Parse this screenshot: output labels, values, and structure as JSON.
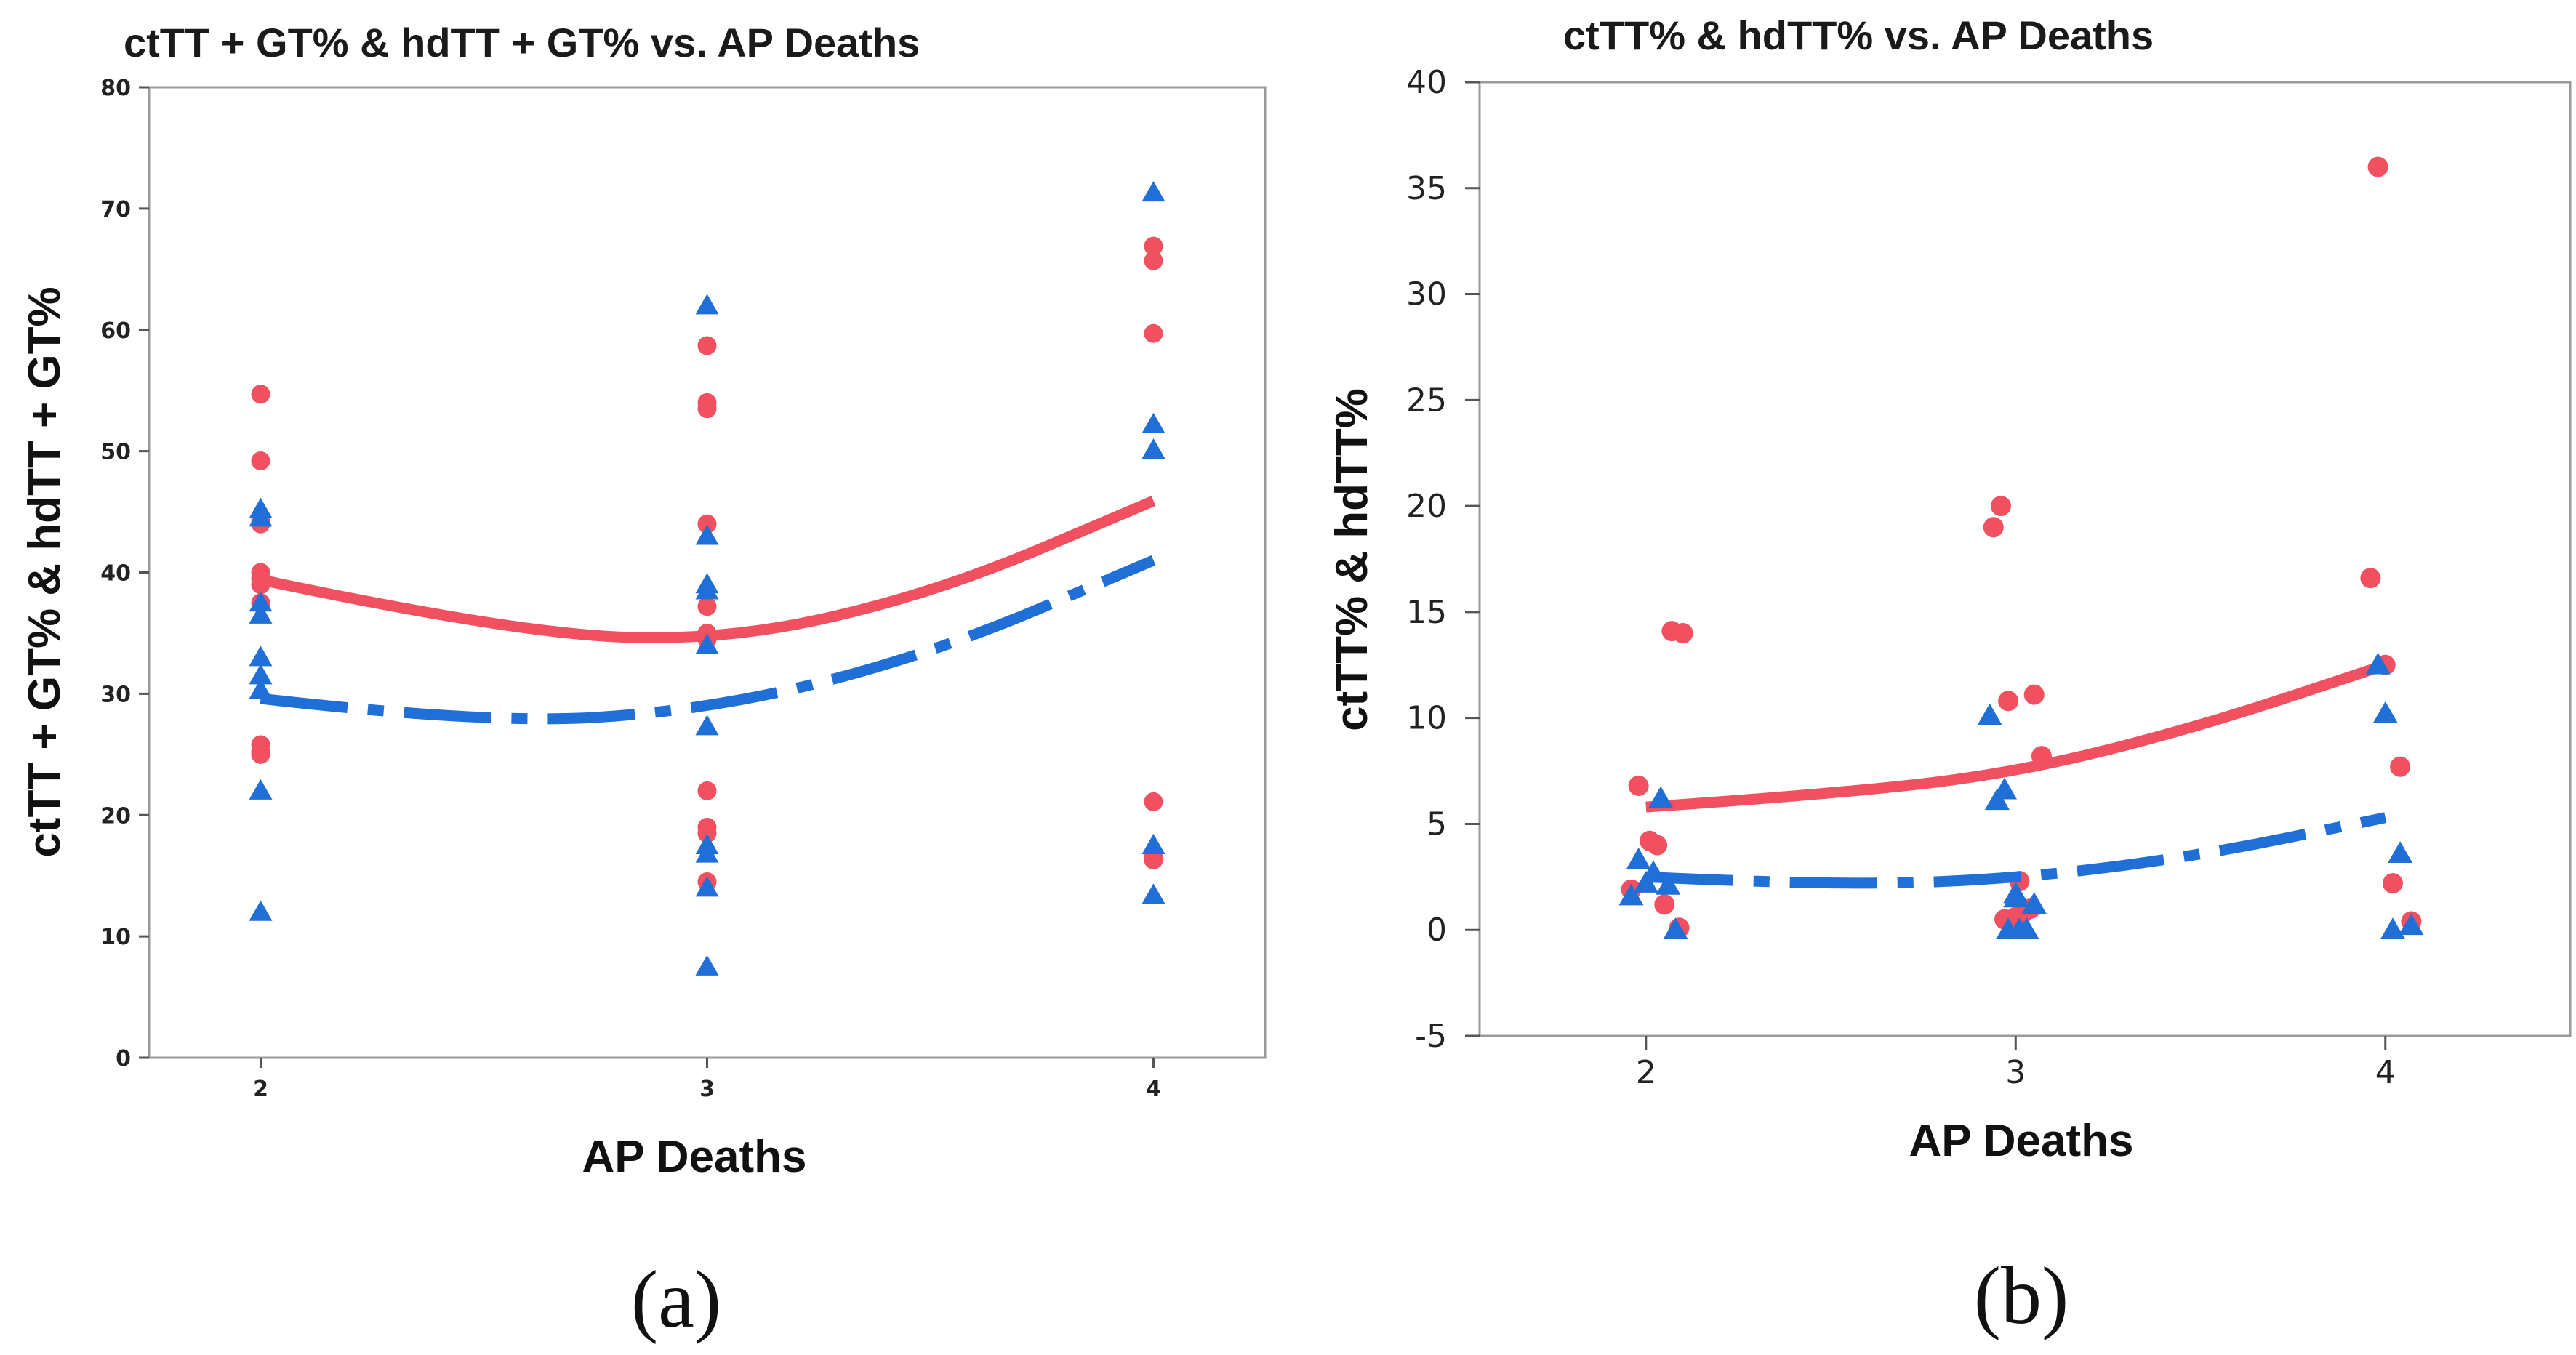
{
  "chart_data": [
    {
      "type": "scatter",
      "panel_label": "(a)",
      "title": "ctTT + GT% & hdTT + GT% vs. AP Deaths",
      "xlabel": "AP Deaths",
      "ylabel": "ctTT + GT% & hdTT + GT%",
      "xlim": [
        1.75,
        4.25
      ],
      "ylim": [
        0,
        80
      ],
      "xticks": [
        2,
        3,
        4
      ],
      "yticks": [
        0,
        10,
        20,
        30,
        40,
        50,
        60,
        70,
        80
      ],
      "series": [
        {
          "name": "ctTT + GT%",
          "marker": "circle",
          "color": "#f0505f",
          "points": [
            [
              2,
              54.7
            ],
            [
              2,
              49.2
            ],
            [
              2,
              44.3
            ],
            [
              2,
              44.0
            ],
            [
              2,
              40.0
            ],
            [
              2,
              39.5
            ],
            [
              2,
              39.0
            ],
            [
              2,
              37.5
            ],
            [
              2,
              25.8
            ],
            [
              2,
              25.2
            ],
            [
              2,
              25.0
            ],
            [
              3,
              58.7
            ],
            [
              3,
              54.0
            ],
            [
              3,
              53.5
            ],
            [
              3,
              44.0
            ],
            [
              3,
              37.2
            ],
            [
              3,
              35.0
            ],
            [
              3,
              34.5
            ],
            [
              3,
              22.0
            ],
            [
              3,
              19.0
            ],
            [
              3,
              18.5
            ],
            [
              3,
              14.5
            ],
            [
              4,
              66.9
            ],
            [
              4,
              65.7
            ],
            [
              4,
              59.7
            ],
            [
              4,
              21.1
            ],
            [
              4,
              16.5
            ],
            [
              4,
              16.3
            ]
          ],
          "fit": [
            [
              2,
              39.4
            ],
            [
              2.5,
              35.5
            ],
            [
              3,
              34.1
            ],
            [
              3.5,
              38.1
            ],
            [
              4,
              45.9
            ]
          ]
        },
        {
          "name": "hdTT + GT%",
          "marker": "triangle",
          "color": "#1f6fd6",
          "points": [
            [
              2,
              45.2
            ],
            [
              2,
              44.5
            ],
            [
              2,
              37.5
            ],
            [
              2,
              36.5
            ],
            [
              2,
              33.0
            ],
            [
              2,
              31.5
            ],
            [
              2,
              30.3
            ],
            [
              2,
              22.0
            ],
            [
              2,
              12.0
            ],
            [
              3,
              62.0
            ],
            [
              3,
              43.0
            ],
            [
              3,
              39.0
            ],
            [
              3,
              38.5
            ],
            [
              3,
              34.0
            ],
            [
              3,
              27.3
            ],
            [
              3,
              17.5
            ],
            [
              3,
              16.8
            ],
            [
              3,
              14.0
            ],
            [
              3,
              7.5
            ],
            [
              4,
              71.3
            ],
            [
              4,
              52.2
            ],
            [
              4,
              50.1
            ],
            [
              4,
              17.5
            ],
            [
              4,
              13.4
            ]
          ],
          "fit": [
            [
              2,
              29.6
            ],
            [
              2.5,
              27.5
            ],
            [
              3,
              28.6
            ],
            [
              3.5,
              33.2
            ],
            [
              4,
              41.0
            ]
          ]
        }
      ]
    },
    {
      "type": "scatter",
      "panel_label": "(b)",
      "title": "ctTT% & hdTT% vs. AP Deaths",
      "xlabel": "AP Deaths",
      "ylabel": "ctTT% & hdTT%",
      "xlim": [
        1.55,
        4.5
      ],
      "ylim": [
        -5,
        40
      ],
      "xticks": [
        2,
        3,
        4
      ],
      "yticks": [
        -5,
        0,
        5,
        10,
        15,
        20,
        25,
        30,
        35,
        40
      ],
      "series": [
        {
          "name": "ctTT%",
          "marker": "circle",
          "color": "#f0505f",
          "points": [
            [
              1.96,
              1.9
            ],
            [
              1.98,
              6.8
            ],
            [
              2.01,
              4.2
            ],
            [
              2.03,
              4.0
            ],
            [
              2.05,
              1.2
            ],
            [
              2.07,
              14.1
            ],
            [
              2.09,
              0.1
            ],
            [
              2.1,
              14.0
            ],
            [
              2.94,
              19.0
            ],
            [
              2.96,
              20.0
            ],
            [
              2.97,
              0.5
            ],
            [
              2.98,
              10.8
            ],
            [
              3.0,
              0.6
            ],
            [
              3.01,
              2.3
            ],
            [
              3.02,
              0.8
            ],
            [
              3.04,
              1.0
            ],
            [
              3.05,
              11.1
            ],
            [
              3.07,
              8.2
            ],
            [
              3.96,
              16.6
            ],
            [
              4.0,
              12.5
            ],
            [
              4.02,
              2.2
            ],
            [
              4.04,
              7.7
            ],
            [
              4.07,
              0.4
            ],
            [
              3.98,
              36.0
            ]
          ],
          "fit": [
            [
              2.0,
              5.8
            ],
            [
              2.5,
              6.4
            ],
            [
              3.0,
              7.4
            ],
            [
              3.5,
              9.6
            ],
            [
              4.0,
              12.5
            ]
          ]
        },
        {
          "name": "hdTT%",
          "marker": "triangle",
          "color": "#1f6fd6",
          "points": [
            [
              1.96,
              1.6
            ],
            [
              1.98,
              3.3
            ],
            [
              2.0,
              2.2
            ],
            [
              2.02,
              2.7
            ],
            [
              2.04,
              6.2
            ],
            [
              2.06,
              2.1
            ],
            [
              2.08,
              0.0
            ],
            [
              2.93,
              10.1
            ],
            [
              2.95,
              6.1
            ],
            [
              2.97,
              6.6
            ],
            [
              2.98,
              0.0
            ],
            [
              3.0,
              1.7
            ],
            [
              3.0,
              1.5
            ],
            [
              3.01,
              0.0
            ],
            [
              3.03,
              0.0
            ],
            [
              3.05,
              1.2
            ],
            [
              3.98,
              12.5
            ],
            [
              4.0,
              10.2
            ],
            [
              4.02,
              0.0
            ],
            [
              4.04,
              3.6
            ],
            [
              4.07,
              0.2
            ]
          ],
          "fit": [
            [
              2.0,
              2.5
            ],
            [
              2.5,
              2.1
            ],
            [
              3.0,
              2.4
            ],
            [
              3.5,
              3.5
            ],
            [
              4.0,
              5.3
            ]
          ]
        }
      ]
    }
  ]
}
